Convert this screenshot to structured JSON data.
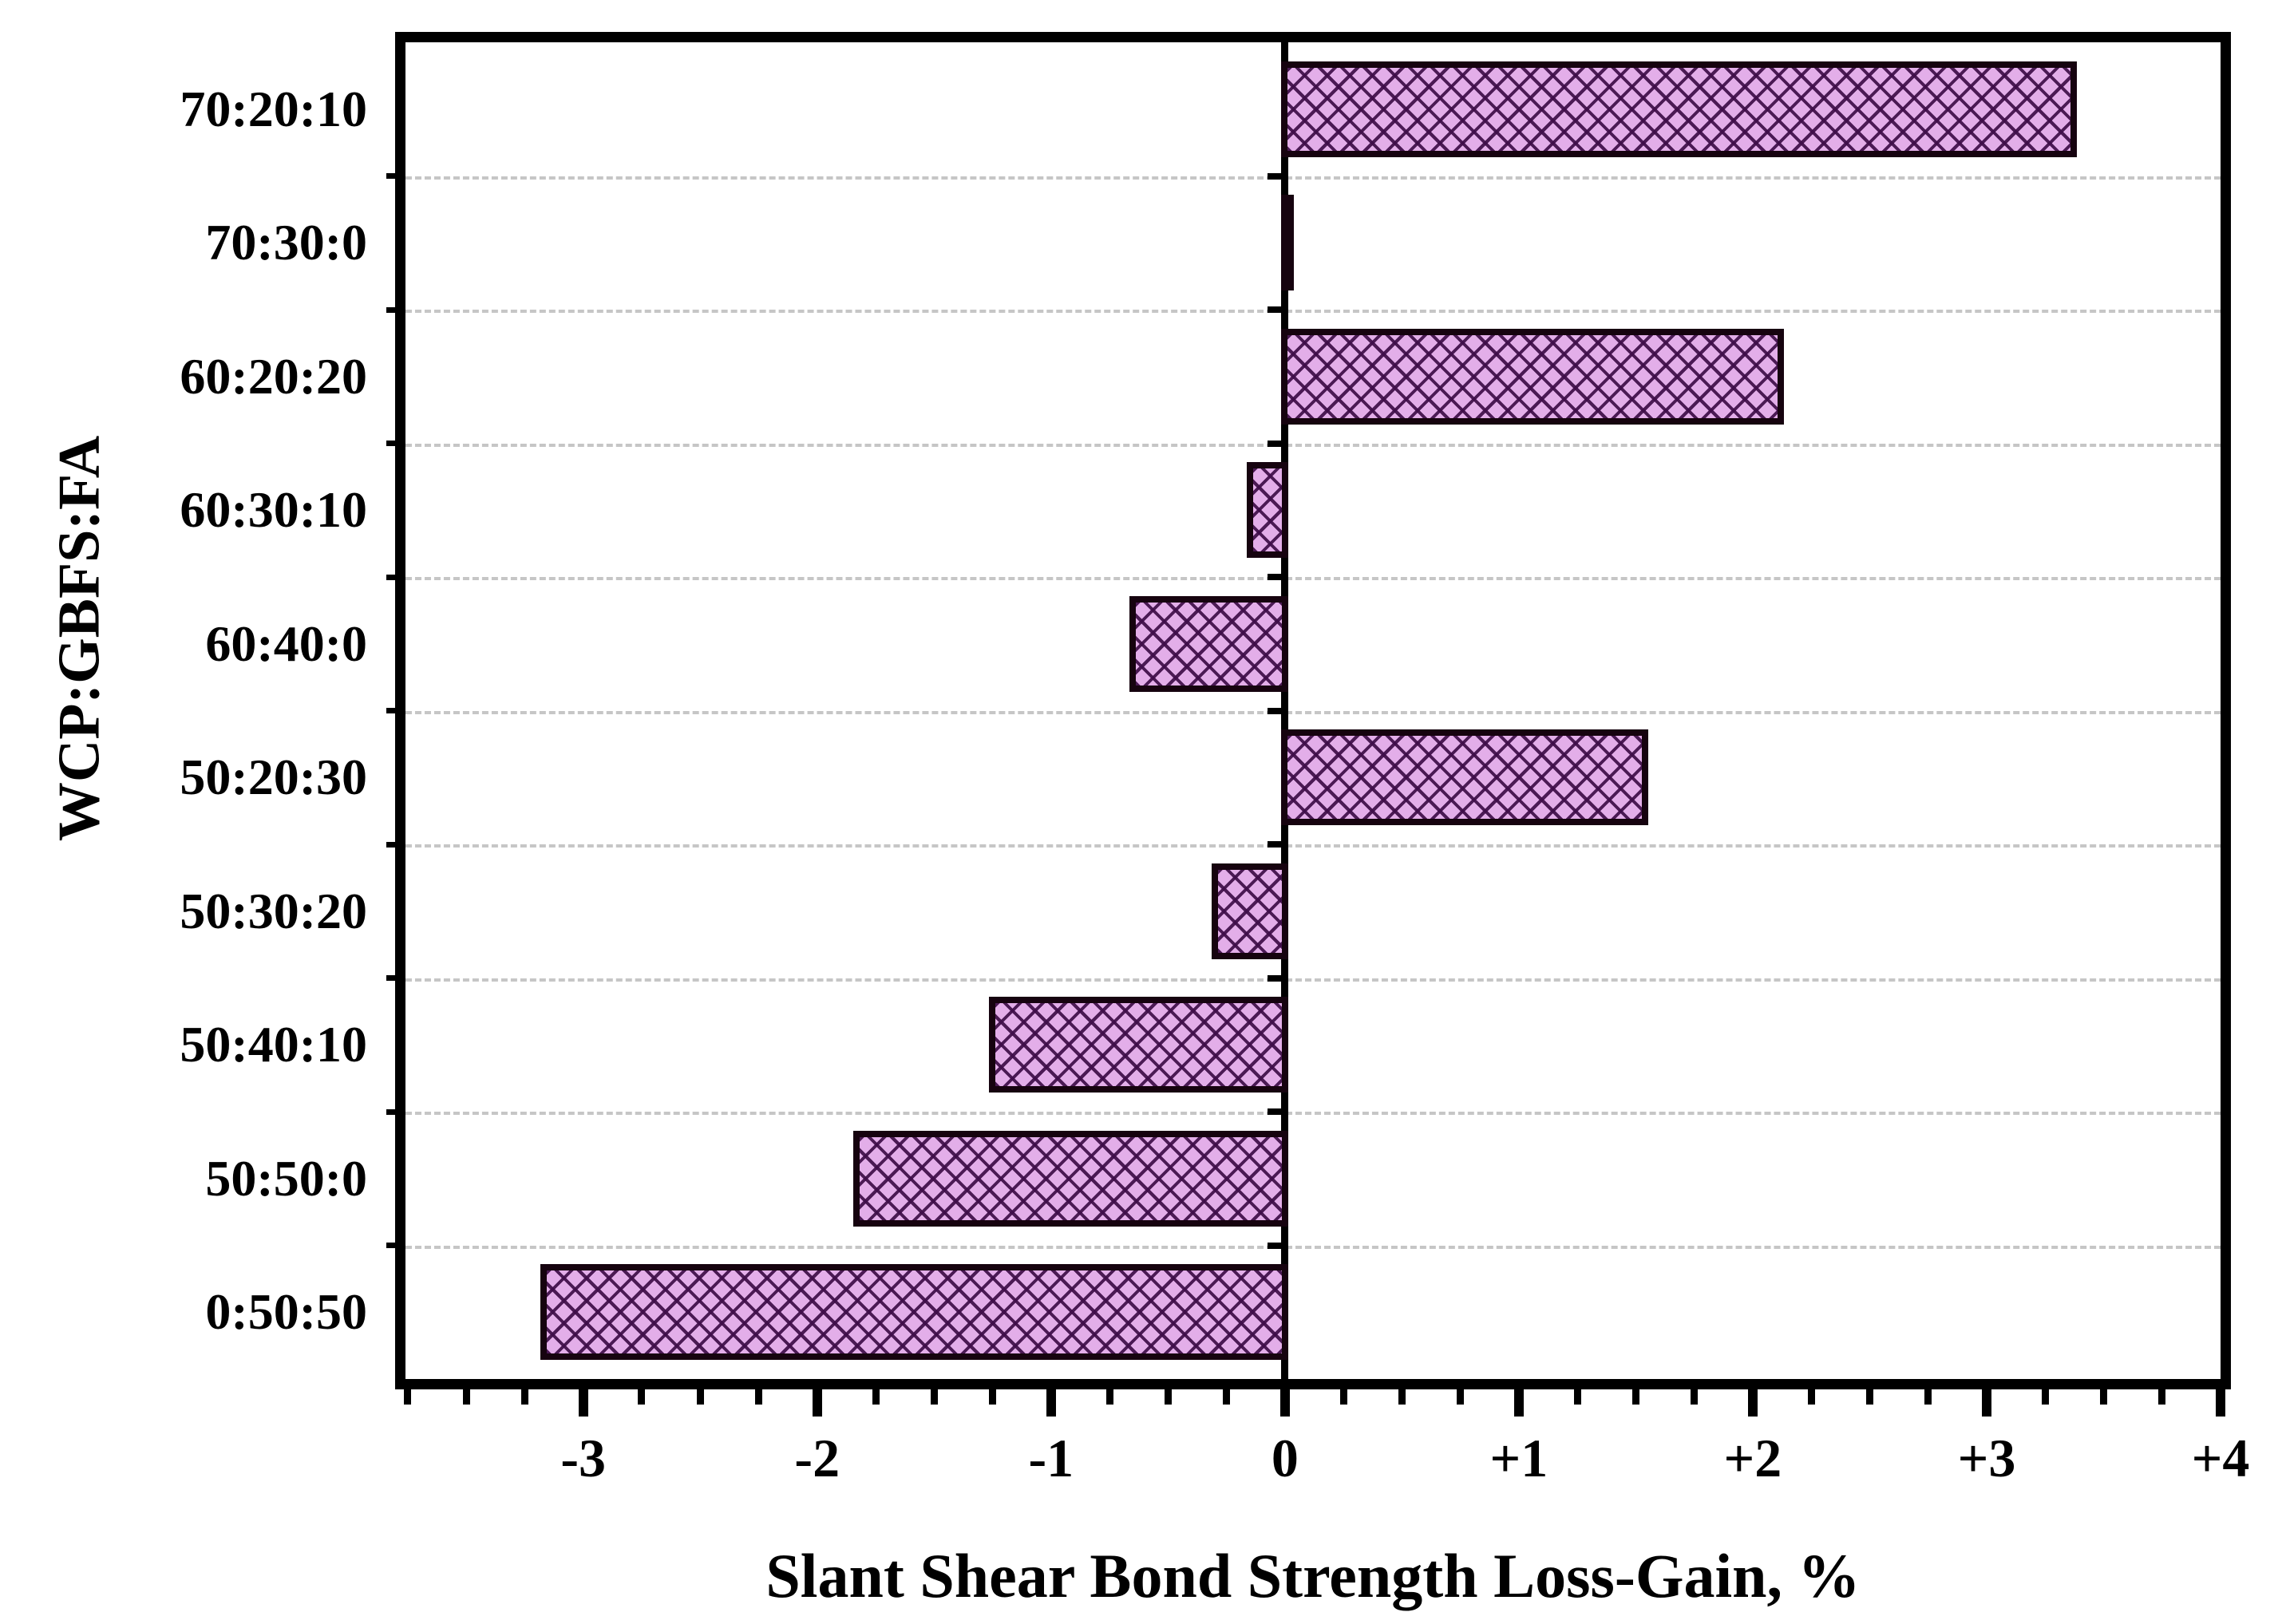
{
  "figure": {
    "background": "#ffffff"
  },
  "chart_data": {
    "type": "bar",
    "orientation": "horizontal",
    "title": "",
    "xlabel": "Slant Shear Bond Strength Loss-Gain, %",
    "ylabel": "WCP:GBFS:FA",
    "categories": [
      "70:20:10",
      "70:30:0",
      "60:20:20",
      "60:30:10",
      "60:40:0",
      "50:20:30",
      "50:30:20",
      "50:40:10",
      "50:50:0",
      "0:50:50"
    ],
    "values": [
      3.4,
      -0.03,
      2.15,
      -0.18,
      -0.68,
      1.57,
      -0.33,
      -1.28,
      -1.86,
      -3.2
    ],
    "xlim": [
      -3.76,
      4.0
    ],
    "xticks": [
      {
        "value": -3,
        "label": "-3"
      },
      {
        "value": -2,
        "label": "-2"
      },
      {
        "value": -1,
        "label": "-1"
      },
      {
        "value": 0,
        "label": "0"
      },
      {
        "value": 1,
        "label": "+1"
      },
      {
        "value": 2,
        "label": "+2"
      },
      {
        "value": 3,
        "label": "+3"
      },
      {
        "value": 4,
        "label": "+4"
      }
    ],
    "minor_tick_step": 0.25,
    "grid": "category-boundaries-dashed",
    "legend": "none",
    "colors": {
      "bar_fill": "#e3aee9",
      "bar_hatch": "#3e0d48",
      "bar_edge": "#16030f",
      "axis": "#000000",
      "grid": "#c6c6c6",
      "background": "#ffffff"
    }
  }
}
